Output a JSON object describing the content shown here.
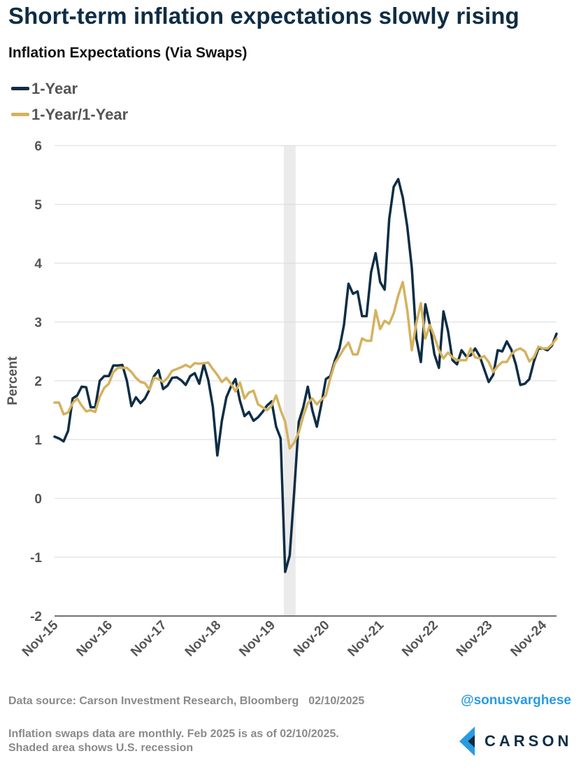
{
  "header": {
    "title": "Short-term inflation expectations slowly rising",
    "subtitle": "Inflation Expectations (Via Swaps)"
  },
  "legend": [
    {
      "label": "1-Year",
      "color": "#0e2d45"
    },
    {
      "label": "1-Year/1-Year",
      "color": "#d4b25e"
    }
  ],
  "footer": {
    "source": "Data source: Carson Investment Research, Bloomberg",
    "date": "02/10/2025",
    "handle": "@sonusvarghese",
    "note_line1": "Inflation swaps data are monthly. Feb 2025 is as of 02/10/2025.",
    "note_line2": "Shaded area shows U.S. recession",
    "logo_text": "CARSON",
    "logo_icon": "carson-chevron-icon"
  },
  "chart_data": {
    "type": "line",
    "ylabel": "Percent",
    "ylim": [
      -2,
      6
    ],
    "yticks": [
      -2,
      -1,
      0,
      1,
      2,
      3,
      4,
      5,
      6
    ],
    "xlim": [
      "2015-11",
      "2025-02"
    ],
    "xticks": [
      "Nov-15",
      "Nov-16",
      "Nov-17",
      "Nov-18",
      "Nov-19",
      "Nov-20",
      "Nov-21",
      "Nov-22",
      "Nov-23",
      "Nov-24"
    ],
    "grid": "horizontal",
    "recession_shading": {
      "start": "2020-02",
      "end": "2020-04"
    },
    "colors": {
      "one_year": "#0e2d45",
      "one_year_one_year": "#d4b25e",
      "recession": "#ebebeb"
    },
    "series": [
      {
        "name": "1-Year",
        "points": [
          [
            "2015-11",
            1.05
          ],
          [
            "2015-12",
            1.02
          ],
          [
            "2016-01",
            0.97
          ],
          [
            "2016-02",
            1.15
          ],
          [
            "2016-03",
            1.7
          ],
          [
            "2016-04",
            1.75
          ],
          [
            "2016-05",
            1.9
          ],
          [
            "2016-06",
            1.89
          ],
          [
            "2016-07",
            1.55
          ],
          [
            "2016-08",
            1.55
          ],
          [
            "2016-09",
            2.0
          ],
          [
            "2016-10",
            2.08
          ],
          [
            "2016-11",
            2.08
          ],
          [
            "2016-12",
            2.26
          ],
          [
            "2017-01",
            2.26
          ],
          [
            "2017-02",
            2.27
          ],
          [
            "2017-03",
            2.0
          ],
          [
            "2017-04",
            1.57
          ],
          [
            "2017-05",
            1.72
          ],
          [
            "2017-06",
            1.62
          ],
          [
            "2017-07",
            1.7
          ],
          [
            "2017-08",
            1.85
          ],
          [
            "2017-09",
            2.08
          ],
          [
            "2017-10",
            2.18
          ],
          [
            "2017-11",
            1.86
          ],
          [
            "2017-12",
            1.92
          ],
          [
            "2018-01",
            2.05
          ],
          [
            "2018-02",
            2.06
          ],
          [
            "2018-03",
            2.01
          ],
          [
            "2018-04",
            1.93
          ],
          [
            "2018-05",
            2.08
          ],
          [
            "2018-06",
            2.13
          ],
          [
            "2018-07",
            1.95
          ],
          [
            "2018-08",
            2.28
          ],
          [
            "2018-09",
            2.01
          ],
          [
            "2018-10",
            1.56
          ],
          [
            "2018-11",
            0.73
          ],
          [
            "2018-12",
            1.32
          ],
          [
            "2019-01",
            1.72
          ],
          [
            "2019-02",
            1.9
          ],
          [
            "2019-03",
            2.03
          ],
          [
            "2019-04",
            1.66
          ],
          [
            "2019-05",
            1.4
          ],
          [
            "2019-06",
            1.47
          ],
          [
            "2019-07",
            1.32
          ],
          [
            "2019-08",
            1.38
          ],
          [
            "2019-09",
            1.47
          ],
          [
            "2019-10",
            1.58
          ],
          [
            "2019-11",
            1.65
          ],
          [
            "2019-12",
            1.22
          ],
          [
            "2020-01",
            1.02
          ],
          [
            "2020-02",
            -1.25
          ],
          [
            "2020-03",
            -0.97
          ],
          [
            "2020-04",
            0.12
          ],
          [
            "2020-05",
            1.3
          ],
          [
            "2020-06",
            1.55
          ],
          [
            "2020-07",
            1.9
          ],
          [
            "2020-08",
            1.5
          ],
          [
            "2020-09",
            1.22
          ],
          [
            "2020-10",
            1.6
          ],
          [
            "2020-11",
            2.03
          ],
          [
            "2020-12",
            2.08
          ],
          [
            "2021-01",
            2.35
          ],
          [
            "2021-02",
            2.55
          ],
          [
            "2021-03",
            2.95
          ],
          [
            "2021-04",
            3.65
          ],
          [
            "2021-05",
            3.48
          ],
          [
            "2021-06",
            3.52
          ],
          [
            "2021-07",
            3.1
          ],
          [
            "2021-08",
            3.1
          ],
          [
            "2021-09",
            3.85
          ],
          [
            "2021-10",
            4.17
          ],
          [
            "2021-11",
            3.68
          ],
          [
            "2021-12",
            3.55
          ],
          [
            "2022-01",
            4.75
          ],
          [
            "2022-02",
            5.3
          ],
          [
            "2022-03",
            5.43
          ],
          [
            "2022-04",
            5.12
          ],
          [
            "2022-05",
            4.62
          ],
          [
            "2022-06",
            3.92
          ],
          [
            "2022-07",
            2.72
          ],
          [
            "2022-08",
            2.32
          ],
          [
            "2022-09",
            3.3
          ],
          [
            "2022-10",
            2.95
          ],
          [
            "2022-11",
            2.45
          ],
          [
            "2022-12",
            2.22
          ],
          [
            "2023-01",
            3.18
          ],
          [
            "2023-02",
            2.85
          ],
          [
            "2023-03",
            2.35
          ],
          [
            "2023-04",
            2.28
          ],
          [
            "2023-05",
            2.52
          ],
          [
            "2023-06",
            2.42
          ],
          [
            "2023-07",
            2.43
          ],
          [
            "2023-08",
            2.55
          ],
          [
            "2023-09",
            2.42
          ],
          [
            "2023-10",
            2.2
          ],
          [
            "2023-11",
            1.98
          ],
          [
            "2023-12",
            2.1
          ],
          [
            "2024-01",
            2.52
          ],
          [
            "2024-02",
            2.5
          ],
          [
            "2024-03",
            2.67
          ],
          [
            "2024-04",
            2.53
          ],
          [
            "2024-05",
            2.28
          ],
          [
            "2024-06",
            1.93
          ],
          [
            "2024-07",
            1.95
          ],
          [
            "2024-08",
            2.03
          ],
          [
            "2024-09",
            2.33
          ],
          [
            "2024-10",
            2.55
          ],
          [
            "2024-11",
            2.55
          ],
          [
            "2024-12",
            2.52
          ],
          [
            "2025-01",
            2.6
          ],
          [
            "2025-02",
            2.8
          ]
        ]
      },
      {
        "name": "1-Year/1-Year",
        "points": [
          [
            "2015-11",
            1.63
          ],
          [
            "2015-12",
            1.63
          ],
          [
            "2016-01",
            1.43
          ],
          [
            "2016-02",
            1.46
          ],
          [
            "2016-03",
            1.62
          ],
          [
            "2016-04",
            1.7
          ],
          [
            "2016-05",
            1.58
          ],
          [
            "2016-06",
            1.48
          ],
          [
            "2016-07",
            1.5
          ],
          [
            "2016-08",
            1.47
          ],
          [
            "2016-09",
            1.73
          ],
          [
            "2016-10",
            1.88
          ],
          [
            "2016-11",
            1.95
          ],
          [
            "2016-12",
            2.15
          ],
          [
            "2017-01",
            2.22
          ],
          [
            "2017-02",
            2.22
          ],
          [
            "2017-03",
            2.22
          ],
          [
            "2017-04",
            2.15
          ],
          [
            "2017-05",
            2.05
          ],
          [
            "2017-06",
            1.98
          ],
          [
            "2017-07",
            1.96
          ],
          [
            "2017-08",
            1.85
          ],
          [
            "2017-09",
            2.05
          ],
          [
            "2017-10",
            2.03
          ],
          [
            "2017-11",
            1.98
          ],
          [
            "2017-12",
            2.05
          ],
          [
            "2018-01",
            2.17
          ],
          [
            "2018-02",
            2.2
          ],
          [
            "2018-03",
            2.23
          ],
          [
            "2018-04",
            2.27
          ],
          [
            "2018-05",
            2.23
          ],
          [
            "2018-06",
            2.3
          ],
          [
            "2018-07",
            2.29
          ],
          [
            "2018-08",
            2.3
          ],
          [
            "2018-09",
            2.31
          ],
          [
            "2018-10",
            2.2
          ],
          [
            "2018-11",
            2.1
          ],
          [
            "2018-12",
            1.98
          ],
          [
            "2019-01",
            2.05
          ],
          [
            "2019-02",
            1.95
          ],
          [
            "2019-03",
            1.82
          ],
          [
            "2019-04",
            1.97
          ],
          [
            "2019-05",
            1.7
          ],
          [
            "2019-06",
            1.8
          ],
          [
            "2019-07",
            1.83
          ],
          [
            "2019-08",
            1.6
          ],
          [
            "2019-09",
            1.55
          ],
          [
            "2019-10",
            1.5
          ],
          [
            "2019-11",
            1.58
          ],
          [
            "2019-12",
            1.75
          ],
          [
            "2020-01",
            1.5
          ],
          [
            "2020-02",
            1.3
          ],
          [
            "2020-03",
            0.85
          ],
          [
            "2020-04",
            0.95
          ],
          [
            "2020-05",
            1.12
          ],
          [
            "2020-06",
            1.4
          ],
          [
            "2020-07",
            1.62
          ],
          [
            "2020-08",
            1.7
          ],
          [
            "2020-09",
            1.6
          ],
          [
            "2020-10",
            1.68
          ],
          [
            "2020-11",
            1.75
          ],
          [
            "2020-12",
            2.05
          ],
          [
            "2021-01",
            2.3
          ],
          [
            "2021-02",
            2.42
          ],
          [
            "2021-03",
            2.55
          ],
          [
            "2021-04",
            2.65
          ],
          [
            "2021-05",
            2.45
          ],
          [
            "2021-06",
            2.45
          ],
          [
            "2021-07",
            2.72
          ],
          [
            "2021-08",
            2.68
          ],
          [
            "2021-09",
            2.68
          ],
          [
            "2021-10",
            3.2
          ],
          [
            "2021-11",
            2.88
          ],
          [
            "2021-12",
            3.02
          ],
          [
            "2022-01",
            2.97
          ],
          [
            "2022-02",
            3.15
          ],
          [
            "2022-03",
            3.45
          ],
          [
            "2022-04",
            3.68
          ],
          [
            "2022-05",
            3.2
          ],
          [
            "2022-06",
            2.52
          ],
          [
            "2022-07",
            2.98
          ],
          [
            "2022-08",
            3.32
          ],
          [
            "2022-09",
            2.72
          ],
          [
            "2022-10",
            2.95
          ],
          [
            "2022-11",
            2.75
          ],
          [
            "2022-12",
            2.52
          ],
          [
            "2023-01",
            2.38
          ],
          [
            "2023-02",
            2.48
          ],
          [
            "2023-03",
            2.4
          ],
          [
            "2023-04",
            2.35
          ],
          [
            "2023-05",
            2.35
          ],
          [
            "2023-06",
            2.35
          ],
          [
            "2023-07",
            2.55
          ],
          [
            "2023-08",
            2.4
          ],
          [
            "2023-09",
            2.38
          ],
          [
            "2023-10",
            2.42
          ],
          [
            "2023-11",
            2.32
          ],
          [
            "2023-12",
            2.15
          ],
          [
            "2024-01",
            2.25
          ],
          [
            "2024-02",
            2.32
          ],
          [
            "2024-03",
            2.32
          ],
          [
            "2024-04",
            2.45
          ],
          [
            "2024-05",
            2.52
          ],
          [
            "2024-06",
            2.55
          ],
          [
            "2024-07",
            2.5
          ],
          [
            "2024-08",
            2.33
          ],
          [
            "2024-09",
            2.4
          ],
          [
            "2024-10",
            2.58
          ],
          [
            "2024-11",
            2.55
          ],
          [
            "2024-12",
            2.55
          ],
          [
            "2025-01",
            2.62
          ],
          [
            "2025-02",
            2.72
          ]
        ]
      }
    ]
  }
}
